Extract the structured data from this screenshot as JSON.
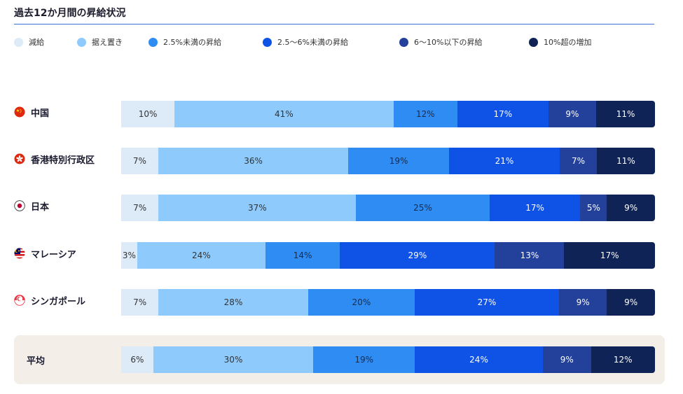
{
  "title": "過去12か月間の昇給状況",
  "colors": [
    "#ddeaf8",
    "#8ecafc",
    "#2e8cf2",
    "#0f52e6",
    "#23409a",
    "#0f2356"
  ],
  "text_colors": [
    "#333333",
    "#333333",
    "#1a2b4a",
    "#ffffff",
    "#ffffff",
    "#ffffff"
  ],
  "legend": [
    {
      "label": "減給"
    },
    {
      "label": "据え置き"
    },
    {
      "label": "2.5%未満の昇給"
    },
    {
      "label": "2.5〜6%未満の昇給"
    },
    {
      "label": "6〜10%以下の昇給"
    },
    {
      "label": "10%超の増加"
    }
  ],
  "chart_data": {
    "type": "bar",
    "orientation": "horizontal",
    "stacked": true,
    "title": "過去12か月間の昇給状況",
    "legend_position": "top",
    "series_names": [
      "減給",
      "据え置き",
      "2.5%未満の昇給",
      "2.5〜6%未満の昇給",
      "6〜10%以下の昇給",
      "10%超の増加"
    ],
    "rows": [
      {
        "label": "中国",
        "flag": "china-flag-icon",
        "values": [
          10,
          41,
          12,
          17,
          9,
          11
        ]
      },
      {
        "label": "香港特別行政区",
        "flag": "hong-kong-flag-icon",
        "values": [
          7,
          36,
          19,
          21,
          7,
          11
        ]
      },
      {
        "label": "日本",
        "flag": "japan-flag-icon",
        "values": [
          7,
          37,
          25,
          17,
          5,
          9
        ]
      },
      {
        "label": "マレーシア",
        "flag": "malaysia-flag-icon",
        "values": [
          3,
          24,
          14,
          29,
          13,
          17
        ]
      },
      {
        "label": "シンガポール",
        "flag": "singapore-flag-icon",
        "values": [
          7,
          28,
          20,
          27,
          9,
          9
        ]
      },
      {
        "label": "平均",
        "flag": "",
        "values": [
          6,
          30,
          19,
          24,
          9,
          12
        ],
        "highlight": true
      }
    ],
    "unit": "%"
  }
}
